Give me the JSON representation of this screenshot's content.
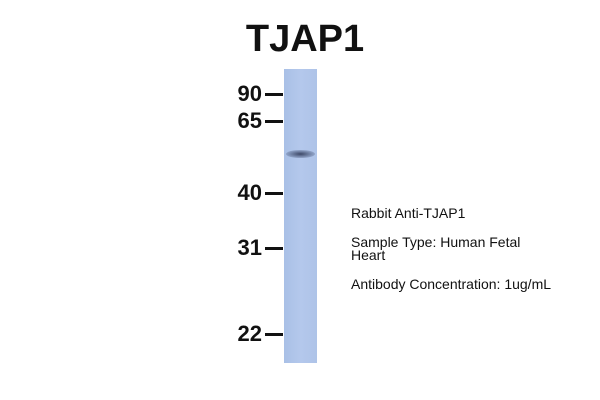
{
  "title": "TJAP1",
  "markers": [
    "90",
    "65",
    "40",
    "31",
    "22"
  ],
  "info": {
    "antibody": "Rabbit Anti-TJAP1",
    "sample_line1": "Sample Type: Human Fetal",
    "sample_line2": "Heart",
    "concentration": "Antibody Concentration: 1ug/mL"
  },
  "colors": {
    "lane": "#b0c5ea",
    "band": "#2d3550"
  }
}
